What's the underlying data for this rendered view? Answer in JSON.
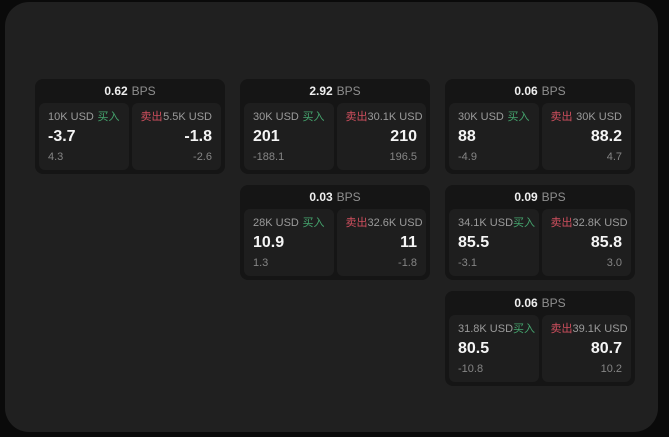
{
  "labels": {
    "buy": "买入",
    "sell": "卖出",
    "bps": "BPS"
  },
  "colors": {
    "buy": "#45a56e",
    "sell": "#cf4f5e",
    "window_bg": "#202020",
    "card_bg": "#151515",
    "panel_bg": "#1e1e1e"
  },
  "cards": [
    {
      "bps": "0.62",
      "col": 1,
      "row": 1,
      "buy": {
        "amount": "10K USD",
        "price": "-3.7",
        "delta": "4.3"
      },
      "sell": {
        "amount": "5.5K USD",
        "price": "-1.8",
        "delta": "-2.6"
      }
    },
    {
      "bps": "2.92",
      "col": 2,
      "row": 1,
      "buy": {
        "amount": "30K USD",
        "price": "201",
        "delta": "-188.1"
      },
      "sell": {
        "amount": "30.1K USD",
        "price": "210",
        "delta": "196.5"
      }
    },
    {
      "bps": "0.06",
      "col": 3,
      "row": 1,
      "buy": {
        "amount": "30K USD",
        "price": "88",
        "delta": "-4.9"
      },
      "sell": {
        "amount": "30K USD",
        "price": "88.2",
        "delta": "4.7"
      }
    },
    {
      "bps": "0.03",
      "col": 2,
      "row": 2,
      "buy": {
        "amount": "28K USD",
        "price": "10.9",
        "delta": "1.3"
      },
      "sell": {
        "amount": "32.6K USD",
        "price": "11",
        "delta": "-1.8"
      }
    },
    {
      "bps": "0.09",
      "col": 3,
      "row": 2,
      "buy": {
        "amount": "34.1K USD",
        "price": "85.5",
        "delta": "-3.1"
      },
      "sell": {
        "amount": "32.8K USD",
        "price": "85.8",
        "delta": "3.0"
      }
    },
    {
      "bps": "0.06",
      "col": 3,
      "row": 3,
      "buy": {
        "amount": "31.8K USD",
        "price": "80.5",
        "delta": "-10.8"
      },
      "sell": {
        "amount": "39.1K USD",
        "price": "80.7",
        "delta": "10.2"
      }
    }
  ]
}
